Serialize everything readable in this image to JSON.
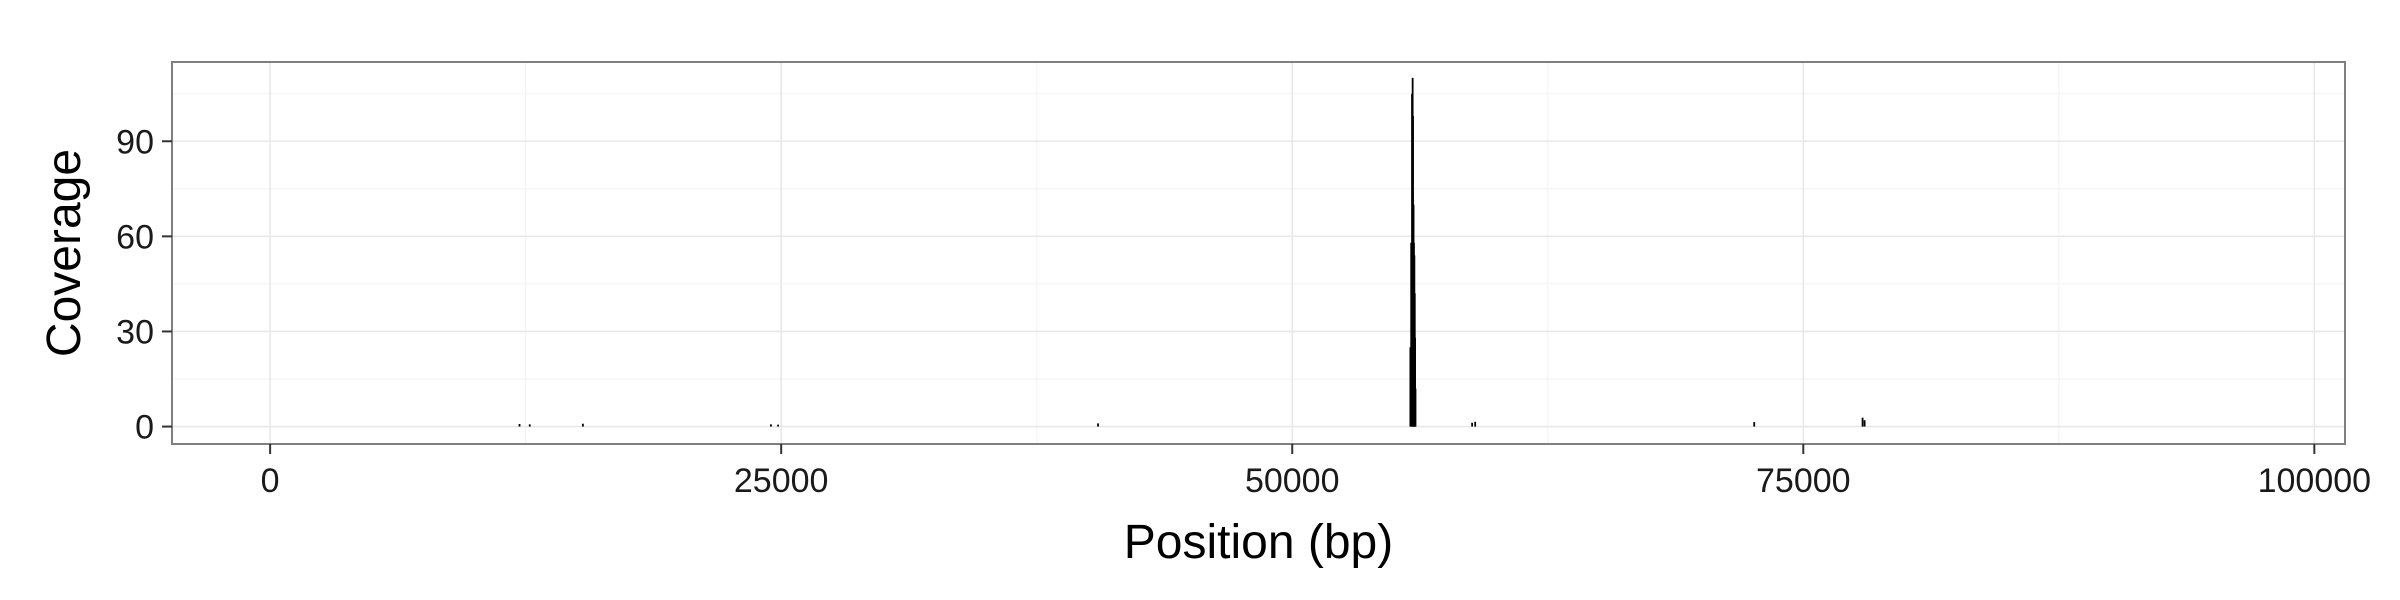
{
  "chart_data": {
    "type": "area",
    "title": "",
    "xlabel": "Position (bp)",
    "ylabel": "Coverage",
    "xlim": [
      -4800,
      101500
    ],
    "ylim": [
      -5.5,
      115
    ],
    "x_ticks": [
      0,
      25000,
      50000,
      75000,
      100000
    ],
    "x_tick_labels": [
      "0",
      "25000",
      "50000",
      "75000",
      "100000"
    ],
    "y_ticks": [
      0,
      30,
      60,
      90
    ],
    "y_tick_labels": [
      "0",
      "30",
      "60",
      "90"
    ],
    "x_minor": [
      12500,
      37500,
      62500,
      87500
    ],
    "y_minor": [
      15,
      45,
      75,
      105
    ],
    "grid": true,
    "legend": "none",
    "series": [
      {
        "color": "#000000",
        "points": [
          {
            "x": 12200,
            "y": 0.8
          },
          {
            "x": 12700,
            "y": 0.7
          },
          {
            "x": 15300,
            "y": 0.9
          },
          {
            "x": 24500,
            "y": 0.7
          },
          {
            "x": 24850,
            "y": 0.6
          },
          {
            "x": 40500,
            "y": 1.0
          },
          {
            "x": 55780,
            "y": 25
          },
          {
            "x": 55820,
            "y": 58
          },
          {
            "x": 55860,
            "y": 105
          },
          {
            "x": 55890,
            "y": 110
          },
          {
            "x": 55910,
            "y": 98
          },
          {
            "x": 55935,
            "y": 70
          },
          {
            "x": 55955,
            "y": 58
          },
          {
            "x": 55975,
            "y": 54
          },
          {
            "x": 55995,
            "y": 42
          },
          {
            "x": 56010,
            "y": 28
          },
          {
            "x": 56030,
            "y": 12
          },
          {
            "x": 58800,
            "y": 1.2
          },
          {
            "x": 58950,
            "y": 1.5
          },
          {
            "x": 72600,
            "y": 1.4
          },
          {
            "x": 77900,
            "y": 2.8
          },
          {
            "x": 78000,
            "y": 2.0
          }
        ]
      }
    ],
    "colors": {
      "panel_border": "#7f7f7f",
      "grid_major": "#e8e8e8",
      "grid_minor": "#f4f4f4",
      "tick": "#333333"
    }
  }
}
